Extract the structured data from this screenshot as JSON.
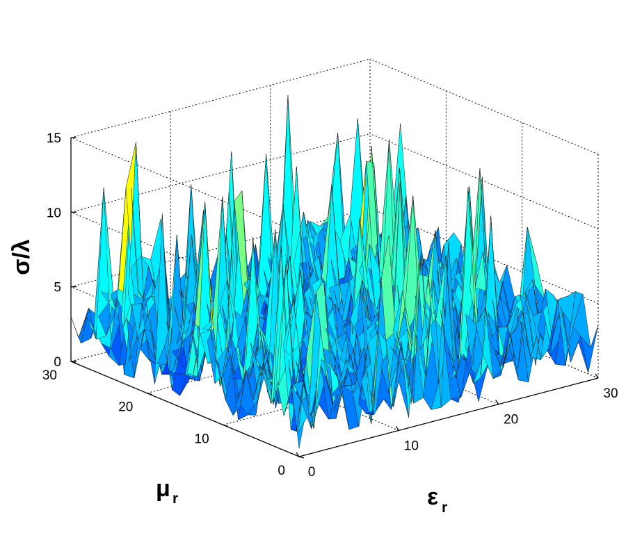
{
  "chart_data": {
    "type": "surface",
    "title": "",
    "xlabel": "ε",
    "xlabel_sub": "r",
    "ylabel": "μ",
    "ylabel_sub": "r",
    "zlabel": "σ/λ",
    "xlim": [
      0,
      30
    ],
    "ylim": [
      0,
      30
    ],
    "zlim": [
      0,
      15
    ],
    "x_ticks": [
      0,
      10,
      20,
      30
    ],
    "y_ticks": [
      0,
      10,
      20,
      30
    ],
    "z_ticks": [
      0,
      5,
      10,
      15
    ],
    "grid": true,
    "colormap": "jet",
    "grid_size": [
      31,
      31
    ],
    "z_summary": {
      "typical_min": 0.5,
      "typical_max": 6,
      "peak_max": 14.5
    },
    "notes": "Noisy random-like surface; individual values not labeled."
  }
}
